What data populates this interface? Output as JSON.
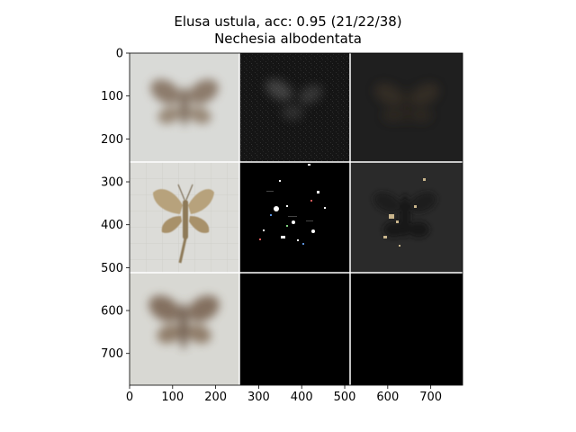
{
  "figure": {
    "title_line1": "Elusa ustula, acc: 0.95 (21/22/38)",
    "title_line2": "Nechesia albodentata"
  },
  "axes": {
    "x_ticks": [
      "0",
      "100",
      "200",
      "300",
      "400",
      "500",
      "600",
      "700"
    ],
    "y_ticks": [
      "0",
      "100",
      "200",
      "300",
      "400",
      "500",
      "600",
      "700"
    ],
    "xlim": [
      0,
      774
    ],
    "ylim": [
      774,
      0
    ]
  },
  "grid_tiles": [
    [
      "moth-blurred-reconstruction",
      "dark-attribution-map",
      "dark-overlay"
    ],
    [
      "moth-specimen-photo",
      "sparse-mask-bright-spots",
      "masked-specimen-overlay"
    ],
    [
      "moth-blurred-reconstruction",
      "black-empty",
      "black-empty"
    ]
  ],
  "colors": {
    "light_tile": "#d9dad7",
    "dark_tile": "#1d1d1d",
    "black_tile": "#000000",
    "moth_brown": "#8a7460",
    "moth_tan": "#b8a47e",
    "separator": "#ffffff"
  }
}
